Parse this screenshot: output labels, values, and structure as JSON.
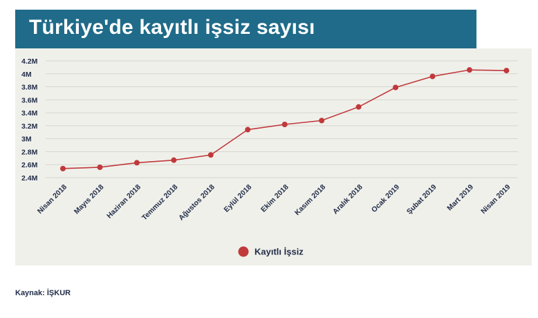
{
  "title": "Türkiye'de kayıtlı işsiz sayısı",
  "source_text": "Kaynak: İŞKUR",
  "colors": {
    "title_bg": "#1f6b89",
    "panel_bg": "#f0f0eb",
    "series": "#c0393b",
    "grid": "#d6d6d0",
    "tick_text": "#222d48"
  },
  "chart_data": {
    "type": "line",
    "categories": [
      "Nisan 2018",
      "Mayıs 2018",
      "Haziran 2018",
      "Temmuz 2018",
      "Ağustos 2018",
      "Eylül 2018",
      "Ekim 2018",
      "Kasım 2018",
      "Aralık 2018",
      "Ocak 2019",
      "Şubat 2019",
      "Mart 2019",
      "Nisan 2019"
    ],
    "series": [
      {
        "name": "Kayıtlı İşsiz",
        "values": [
          2.54,
          2.56,
          2.63,
          2.67,
          2.75,
          3.14,
          3.22,
          3.28,
          3.49,
          3.79,
          3.96,
          4.06,
          4.05
        ]
      }
    ],
    "y_ticks": [
      "2.4M",
      "2.6M",
      "2.8M",
      "3M",
      "3.2M",
      "3.4M",
      "3.6M",
      "3.8M",
      "4M",
      "4.2M"
    ],
    "y_tick_values": [
      2.4,
      2.6,
      2.8,
      3.0,
      3.2,
      3.4,
      3.6,
      3.8,
      4.0,
      4.2
    ],
    "ylim": [
      2.4,
      4.2
    ],
    "grid": true,
    "legend_position": "bottom-center",
    "xlabel": "",
    "ylabel": ""
  }
}
